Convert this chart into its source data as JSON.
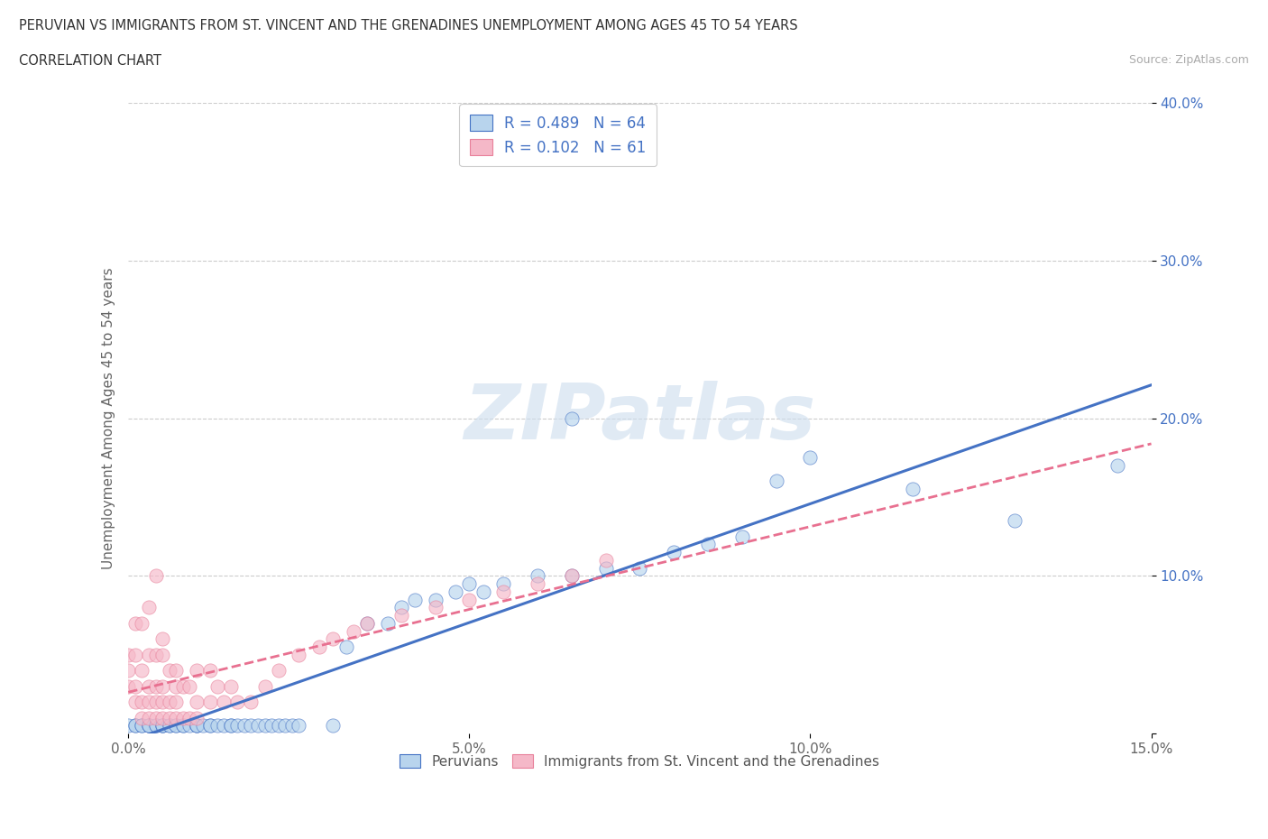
{
  "title": "PERUVIAN VS IMMIGRANTS FROM ST. VINCENT AND THE GRENADINES UNEMPLOYMENT AMONG AGES 45 TO 54 YEARS",
  "subtitle": "CORRELATION CHART",
  "source": "Source: ZipAtlas.com",
  "ylabel": "Unemployment Among Ages 45 to 54 years",
  "xlim": [
    0.0,
    0.15
  ],
  "ylim": [
    0.0,
    0.4
  ],
  "xticks": [
    0.0,
    0.05,
    0.1,
    0.15
  ],
  "yticks": [
    0.0,
    0.1,
    0.2,
    0.3,
    0.4
  ],
  "blue_R": 0.489,
  "blue_N": 64,
  "pink_R": 0.102,
  "pink_N": 61,
  "blue_face_color": "#b8d4ed",
  "blue_edge_color": "#4472c4",
  "pink_face_color": "#f5b8c8",
  "pink_edge_color": "#e8809a",
  "blue_line_color": "#4472c4",
  "pink_line_color": "#e87090",
  "legend_blue_label": "Peruvians",
  "legend_pink_label": "Immigrants from St. Vincent and the Grenadines",
  "watermark": "ZIPatlas",
  "title_color": "#333333",
  "tick_color_y": "#4472c4",
  "tick_color_x": "#666666",
  "grid_color": "#cccccc",
  "blue_x": [
    0.0,
    0.001,
    0.001,
    0.002,
    0.002,
    0.003,
    0.003,
    0.003,
    0.004,
    0.004,
    0.005,
    0.005,
    0.005,
    0.006,
    0.006,
    0.007,
    0.007,
    0.008,
    0.008,
    0.009,
    0.01,
    0.01,
    0.01,
    0.011,
    0.012,
    0.012,
    0.013,
    0.014,
    0.015,
    0.015,
    0.016,
    0.017,
    0.018,
    0.019,
    0.02,
    0.021,
    0.022,
    0.023,
    0.024,
    0.025,
    0.03,
    0.032,
    0.035,
    0.038,
    0.04,
    0.042,
    0.045,
    0.048,
    0.05,
    0.052,
    0.055,
    0.06,
    0.065,
    0.065,
    0.07,
    0.075,
    0.08,
    0.085,
    0.09,
    0.095,
    0.1,
    0.115,
    0.13,
    0.145
  ],
  "blue_y": [
    0.005,
    0.005,
    0.005,
    0.005,
    0.005,
    0.005,
    0.005,
    0.005,
    0.005,
    0.005,
    0.005,
    0.005,
    0.005,
    0.005,
    0.005,
    0.005,
    0.005,
    0.005,
    0.005,
    0.005,
    0.005,
    0.005,
    0.005,
    0.005,
    0.005,
    0.005,
    0.005,
    0.005,
    0.005,
    0.005,
    0.005,
    0.005,
    0.005,
    0.005,
    0.005,
    0.005,
    0.005,
    0.005,
    0.005,
    0.005,
    0.005,
    0.055,
    0.07,
    0.07,
    0.08,
    0.085,
    0.085,
    0.09,
    0.095,
    0.09,
    0.095,
    0.1,
    0.1,
    0.2,
    0.105,
    0.105,
    0.115,
    0.12,
    0.125,
    0.16,
    0.175,
    0.155,
    0.135,
    0.17
  ],
  "pink_x": [
    0.0,
    0.0,
    0.0,
    0.001,
    0.001,
    0.001,
    0.001,
    0.002,
    0.002,
    0.002,
    0.002,
    0.003,
    0.003,
    0.003,
    0.003,
    0.003,
    0.004,
    0.004,
    0.004,
    0.004,
    0.004,
    0.005,
    0.005,
    0.005,
    0.005,
    0.005,
    0.006,
    0.006,
    0.006,
    0.007,
    0.007,
    0.007,
    0.007,
    0.008,
    0.008,
    0.009,
    0.009,
    0.01,
    0.01,
    0.01,
    0.012,
    0.012,
    0.013,
    0.014,
    0.015,
    0.016,
    0.018,
    0.02,
    0.022,
    0.025,
    0.028,
    0.03,
    0.033,
    0.035,
    0.04,
    0.045,
    0.05,
    0.055,
    0.06,
    0.065,
    0.07
  ],
  "pink_y": [
    0.03,
    0.04,
    0.05,
    0.02,
    0.03,
    0.05,
    0.07,
    0.01,
    0.02,
    0.04,
    0.07,
    0.01,
    0.02,
    0.03,
    0.05,
    0.08,
    0.01,
    0.02,
    0.03,
    0.05,
    0.1,
    0.01,
    0.02,
    0.03,
    0.05,
    0.06,
    0.01,
    0.02,
    0.04,
    0.01,
    0.02,
    0.03,
    0.04,
    0.01,
    0.03,
    0.01,
    0.03,
    0.01,
    0.02,
    0.04,
    0.02,
    0.04,
    0.03,
    0.02,
    0.03,
    0.02,
    0.02,
    0.03,
    0.04,
    0.05,
    0.055,
    0.06,
    0.065,
    0.07,
    0.075,
    0.08,
    0.085,
    0.09,
    0.095,
    0.1,
    0.11
  ]
}
